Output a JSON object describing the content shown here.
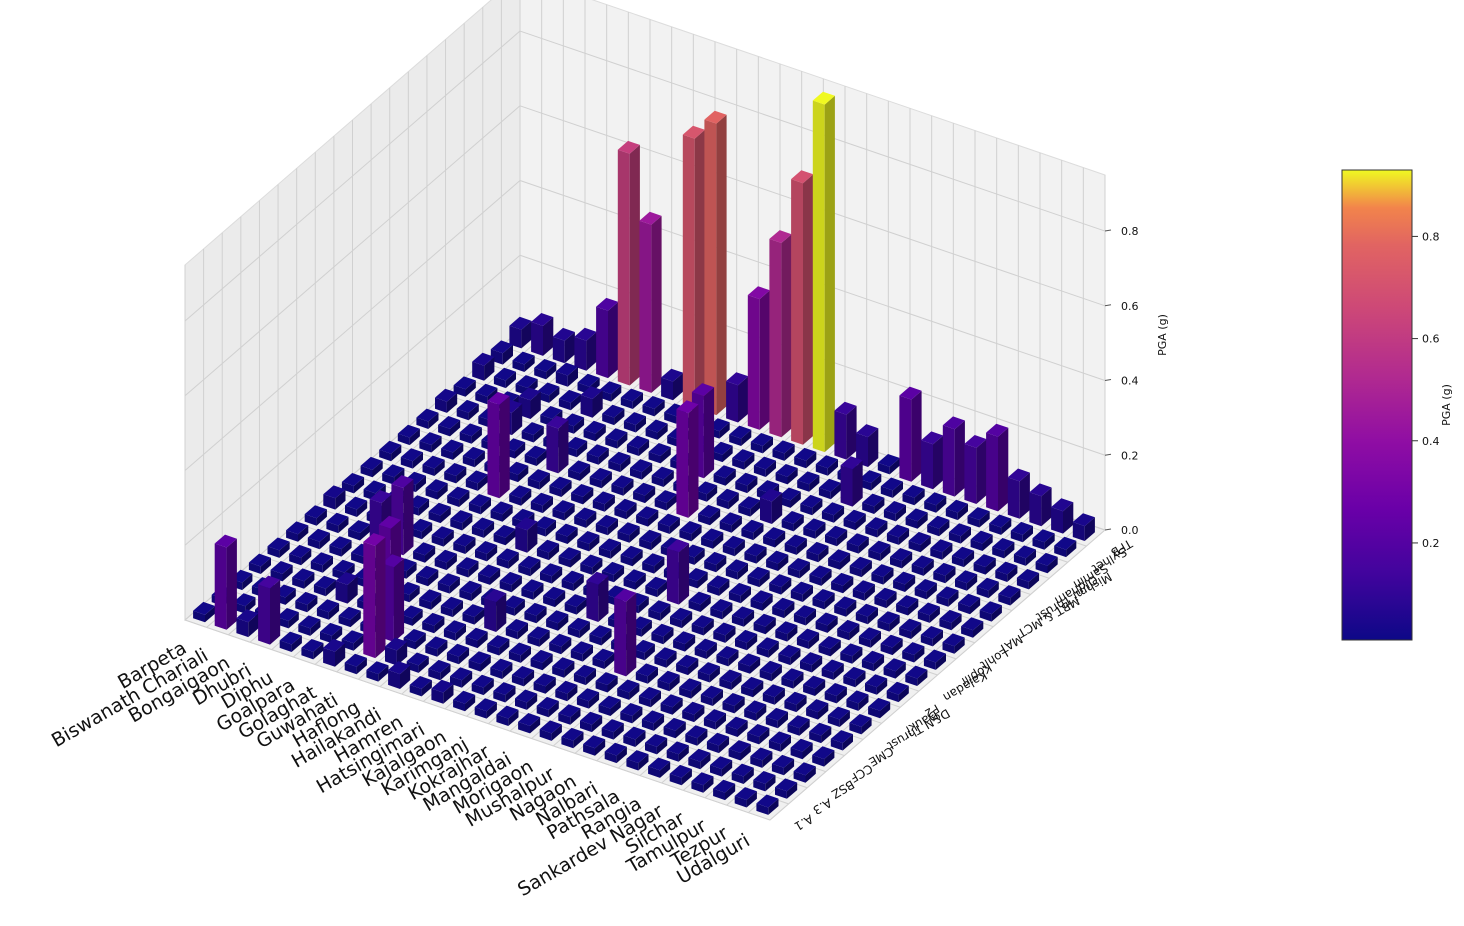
{
  "chart_data": {
    "type": "bar3d",
    "title": "",
    "zlabel": "PGA (g)",
    "colorbar_label": "PGA (g)",
    "colormap": "plasma",
    "zlim": [
      0,
      0.95
    ],
    "z_ticks": [
      "0.0",
      "0.2",
      "0.4",
      "0.6",
      "0.8"
    ],
    "colorbar_ticks": [
      "0.2",
      "0.4",
      "0.6",
      "0.8"
    ],
    "colorbar_range": [
      0.01,
      0.93
    ],
    "x_categories": [
      "Barpeta",
      "Biswanath Chariali",
      "Bongaigaon",
      "Dhubri",
      "Diphu",
      "Goalpara",
      "Golaghat",
      "Guwahati",
      "Haflong",
      "Hailakandi",
      "Hamren",
      "Hatsingimari",
      "Kajalgaon",
      "Karimganj",
      "Kokrajhar",
      "Mangaldai",
      "Morigaon",
      "Mushalpur",
      "Nagaon",
      "Nalbari",
      "Pathsala",
      "Rangia",
      "Sankardev Nagar",
      "Silchar",
      "Tamulpur",
      "Tezpur",
      "Udalguri"
    ],
    "y_categories": [
      "A.1",
      "A.3",
      "BSZ",
      "CCF",
      "CME",
      "D&N Thrust",
      "Dauki",
      "F2",
      "Kaladan",
      "Kopili",
      "Lohit",
      "MAT",
      "MBT & MCT",
      "Mishmi Thrust",
      "Oldham",
      "Samin",
      "Sylhet",
      "TFB"
    ],
    "values": [
      [
        0.02,
        0.02,
        0.02,
        0.02,
        0.02,
        0.02,
        0.02,
        0.03,
        0.02,
        0.02,
        0.02,
        0.02,
        0.02,
        0.03,
        0.02,
        0.04,
        0.03,
        0.05
      ],
      [
        0.22,
        0.02,
        0.02,
        0.02,
        0.02,
        0.02,
        0.02,
        0.02,
        0.02,
        0.02,
        0.02,
        0.02,
        0.02,
        0.02,
        0.02,
        0.02,
        0.02,
        0.08
      ],
      [
        0.04,
        0.02,
        0.02,
        0.02,
        0.02,
        0.02,
        0.02,
        0.02,
        0.02,
        0.02,
        0.02,
        0.02,
        0.02,
        0.02,
        0.02,
        0.02,
        0.02,
        0.06
      ],
      [
        0.15,
        0.02,
        0.02,
        0.02,
        0.02,
        0.02,
        0.12,
        0.02,
        0.02,
        0.02,
        0.02,
        0.02,
        0.02,
        0.06,
        0.05,
        0.02,
        0.03,
        0.08
      ],
      [
        0.02,
        0.02,
        0.02,
        0.05,
        0.02,
        0.02,
        0.18,
        0.02,
        0.02,
        0.02,
        0.02,
        0.02,
        0.02,
        0.02,
        0.02,
        0.02,
        0.02,
        0.18
      ],
      [
        0.02,
        0.02,
        0.02,
        0.02,
        0.02,
        0.02,
        0.02,
        0.02,
        0.02,
        0.02,
        0.25,
        0.02,
        0.02,
        0.02,
        0.02,
        0.05,
        0.02,
        0.62
      ],
      [
        0.04,
        0.02,
        0.02,
        0.24,
        0.02,
        0.02,
        0.02,
        0.02,
        0.02,
        0.02,
        0.02,
        0.02,
        0.12,
        0.02,
        0.02,
        0.02,
        0.02,
        0.45
      ],
      [
        0.02,
        0.3,
        0.2,
        0.02,
        0.02,
        0.02,
        0.02,
        0.02,
        0.02,
        0.02,
        0.02,
        0.02,
        0.02,
        0.02,
        0.02,
        0.02,
        0.02,
        0.05
      ],
      [
        0.02,
        0.04,
        0.02,
        0.02,
        0.02,
        0.02,
        0.02,
        0.02,
        0.06,
        0.02,
        0.02,
        0.02,
        0.02,
        0.02,
        0.02,
        0.02,
        0.02,
        0.72
      ],
      [
        0.04,
        0.02,
        0.02,
        0.02,
        0.02,
        0.02,
        0.02,
        0.02,
        0.02,
        0.02,
        0.02,
        0.02,
        0.02,
        0.02,
        0.02,
        0.02,
        0.02,
        0.78
      ],
      [
        0.02,
        0.02,
        0.02,
        0.02,
        0.08,
        0.02,
        0.02,
        0.02,
        0.02,
        0.02,
        0.02,
        0.02,
        0.02,
        0.02,
        0.02,
        0.02,
        0.02,
        0.1
      ],
      [
        0.03,
        0.02,
        0.02,
        0.02,
        0.02,
        0.02,
        0.02,
        0.02,
        0.02,
        0.02,
        0.02,
        0.02,
        0.02,
        0.02,
        0.22,
        0.02,
        0.02,
        0.35
      ],
      [
        0.02,
        0.02,
        0.02,
        0.02,
        0.02,
        0.02,
        0.02,
        0.02,
        0.02,
        0.02,
        0.02,
        0.02,
        0.28,
        0.02,
        0.02,
        0.02,
        0.02,
        0.52
      ],
      [
        0.02,
        0.02,
        0.02,
        0.02,
        0.02,
        0.02,
        0.1,
        0.02,
        0.02,
        0.02,
        0.02,
        0.02,
        0.02,
        0.02,
        0.02,
        0.02,
        0.02,
        0.7
      ],
      [
        0.02,
        0.02,
        0.02,
        0.02,
        0.02,
        0.02,
        0.02,
        0.02,
        0.02,
        0.02,
        0.02,
        0.02,
        0.02,
        0.02,
        0.02,
        0.02,
        0.02,
        0.93
      ],
      [
        0.02,
        0.02,
        0.02,
        0.02,
        0.02,
        0.02,
        0.02,
        0.02,
        0.14,
        0.02,
        0.02,
        0.02,
        0.02,
        0.06,
        0.02,
        0.02,
        0.02,
        0.12
      ],
      [
        0.02,
        0.02,
        0.02,
        0.02,
        0.2,
        0.02,
        0.02,
        0.02,
        0.02,
        0.02,
        0.02,
        0.02,
        0.02,
        0.02,
        0.02,
        0.02,
        0.02,
        0.08
      ],
      [
        0.02,
        0.02,
        0.02,
        0.02,
        0.02,
        0.02,
        0.02,
        0.02,
        0.02,
        0.02,
        0.02,
        0.02,
        0.02,
        0.02,
        0.02,
        0.1,
        0.02,
        0.02
      ],
      [
        0.02,
        0.02,
        0.02,
        0.02,
        0.02,
        0.02,
        0.02,
        0.02,
        0.02,
        0.02,
        0.02,
        0.02,
        0.02,
        0.02,
        0.02,
        0.02,
        0.02,
        0.22
      ],
      [
        0.02,
        0.02,
        0.02,
        0.02,
        0.02,
        0.02,
        0.02,
        0.02,
        0.02,
        0.02,
        0.02,
        0.02,
        0.02,
        0.02,
        0.02,
        0.02,
        0.02,
        0.12
      ],
      [
        0.02,
        0.02,
        0.02,
        0.02,
        0.02,
        0.02,
        0.02,
        0.02,
        0.02,
        0.02,
        0.02,
        0.02,
        0.02,
        0.02,
        0.02,
        0.02,
        0.02,
        0.18
      ],
      [
        0.02,
        0.02,
        0.02,
        0.02,
        0.02,
        0.02,
        0.02,
        0.02,
        0.02,
        0.02,
        0.02,
        0.02,
        0.02,
        0.02,
        0.02,
        0.02,
        0.02,
        0.15
      ],
      [
        0.02,
        0.02,
        0.02,
        0.02,
        0.02,
        0.02,
        0.02,
        0.02,
        0.02,
        0.02,
        0.02,
        0.02,
        0.02,
        0.02,
        0.02,
        0.02,
        0.02,
        0.2
      ],
      [
        0.02,
        0.02,
        0.02,
        0.02,
        0.02,
        0.02,
        0.02,
        0.02,
        0.02,
        0.02,
        0.02,
        0.02,
        0.02,
        0.02,
        0.02,
        0.02,
        0.02,
        0.1
      ],
      [
        0.02,
        0.02,
        0.02,
        0.02,
        0.02,
        0.02,
        0.02,
        0.02,
        0.02,
        0.02,
        0.02,
        0.02,
        0.02,
        0.02,
        0.02,
        0.02,
        0.02,
        0.08
      ],
      [
        0.02,
        0.02,
        0.02,
        0.02,
        0.02,
        0.02,
        0.02,
        0.02,
        0.02,
        0.02,
        0.02,
        0.02,
        0.02,
        0.02,
        0.02,
        0.02,
        0.02,
        0.06
      ],
      [
        0.02,
        0.02,
        0.02,
        0.02,
        0.02,
        0.02,
        0.02,
        0.02,
        0.02,
        0.02,
        0.02,
        0.02,
        0.02,
        0.02,
        0.02,
        0.02,
        0.02,
        0.04
      ]
    ]
  }
}
